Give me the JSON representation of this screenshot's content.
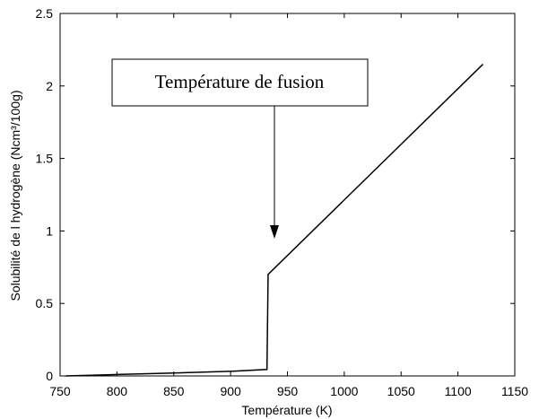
{
  "chart_data": {
    "type": "line",
    "title": "",
    "xlabel": "Température (K)",
    "ylabel": "Solubilité de l hydrogène (Ncm³/100g)",
    "xlim": [
      750,
      1150
    ],
    "ylim": [
      0,
      2.5
    ],
    "x_ticks": [
      750,
      800,
      850,
      900,
      950,
      1000,
      1050,
      1100,
      1150
    ],
    "y_ticks": [
      0,
      0.5,
      1,
      1.5,
      2,
      2.5
    ],
    "x_tick_labels": [
      "750",
      "800",
      "850",
      "900",
      "950",
      "1000",
      "1050",
      "1100",
      "1150"
    ],
    "y_tick_labels": [
      "0",
      "0.5",
      "1",
      "1.5",
      "2",
      "2.5"
    ],
    "grid": false,
    "series": [
      {
        "x": [
          755,
          800,
          850,
          900,
          932,
          933,
          1122
        ],
        "y": [
          0.0,
          0.01,
          0.02,
          0.032,
          0.045,
          0.7,
          2.15
        ]
      }
    ],
    "annotations": [
      {
        "text": "Température de fusion",
        "arrow_to": [
          935,
          0.95
        ]
      }
    ]
  }
}
